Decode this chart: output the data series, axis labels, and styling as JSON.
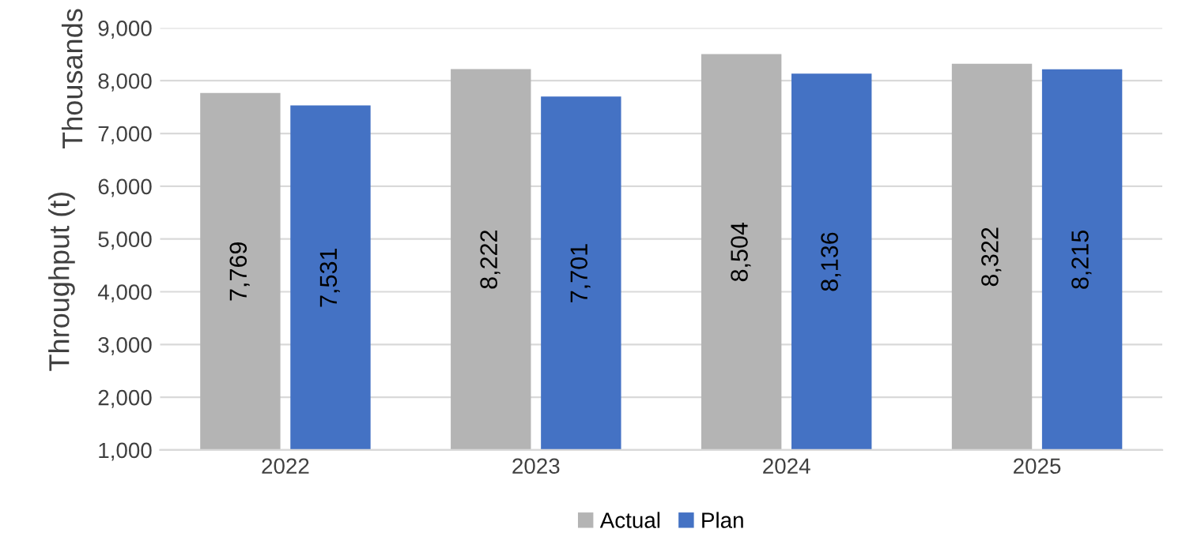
{
  "chart_data": {
    "type": "bar",
    "ylabel": "Throughput (t)",
    "annotations": [
      "Thousands"
    ],
    "categories": [
      "2022",
      "2023",
      "2024",
      "2025"
    ],
    "series": [
      {
        "name": "Actual",
        "color": "#b4b4b4",
        "values": [
          7769,
          8222,
          8504,
          8322
        ],
        "value_labels": [
          "7,769",
          "8,222",
          "8,504",
          "8,322"
        ]
      },
      {
        "name": "Plan",
        "color": "#4472c4",
        "values": [
          7531,
          7701,
          8136,
          8215
        ],
        "value_labels": [
          "7,531",
          "7,701",
          "8,136",
          "8,215"
        ]
      }
    ],
    "ylim": [
      1000,
      9000
    ],
    "yticks": [
      {
        "value": 1000,
        "label": "1,000"
      },
      {
        "value": 2000,
        "label": "2,000"
      },
      {
        "value": 3000,
        "label": "3,000"
      },
      {
        "value": 4000,
        "label": "4,000"
      },
      {
        "value": 5000,
        "label": "5,000"
      },
      {
        "value": 6000,
        "label": "6,000"
      },
      {
        "value": 7000,
        "label": "7,000"
      },
      {
        "value": 8000,
        "label": "8,000"
      },
      {
        "value": 9000,
        "label": "9,000"
      }
    ],
    "grid": "y",
    "legend": "bottom"
  }
}
